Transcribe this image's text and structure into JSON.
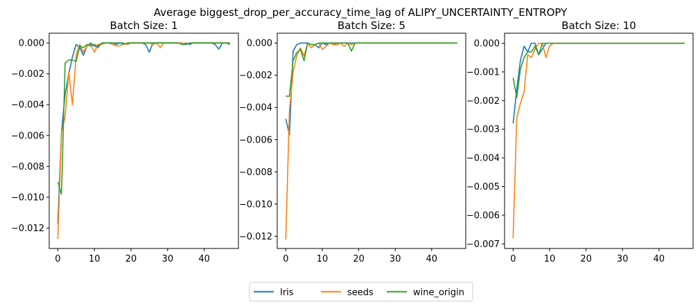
{
  "chart_data": {
    "type": "line",
    "suptitle": "Average biggest_drop_per_accuracy_time_lag of ALIPY_UNCERTAINTY_ENTROPY",
    "legend": {
      "placement": "bottom-center",
      "entries": [
        "Iris",
        "seeds",
        "wine_origin"
      ]
    },
    "colors": {
      "Iris": "#1f77b4",
      "seeds": "#ff7f0e",
      "wine_origin": "#2ca02c"
    },
    "grid": false,
    "subplots": [
      {
        "title": "Batch Size: 1",
        "xlim": [
          -2.35,
          49.35
        ],
        "ylim": [
          -0.01332,
          0.00063
        ],
        "xticks": [
          0,
          10,
          20,
          30,
          40
        ],
        "xtick_labels": [
          "0",
          "10",
          "20",
          "30",
          "40"
        ],
        "yticks": [
          0.0,
          -0.002,
          -0.004,
          -0.006,
          -0.008,
          -0.01,
          -0.012
        ],
        "ytick_labels": [
          "0.000",
          "−0.002",
          "−0.004",
          "−0.006",
          "−0.008",
          "−0.010",
          "−0.012"
        ],
        "x": [
          0,
          1,
          2,
          3,
          4,
          5,
          6,
          7,
          8,
          9,
          10,
          11,
          12,
          13,
          14,
          15,
          16,
          17,
          18,
          19,
          20,
          21,
          22,
          23,
          24,
          25,
          26,
          27,
          28,
          29,
          30,
          31,
          32,
          33,
          34,
          35,
          36,
          37,
          38,
          39,
          40,
          41,
          42,
          43,
          44,
          45,
          46,
          47
        ],
        "series": [
          {
            "name": "Iris",
            "values": [
              -0.0117,
              -0.0058,
              -0.0033,
              -0.002,
              -0.0009,
              -0.0001,
              -0.0003,
              -0.0008,
              -0.0002,
              0,
              -0.0002,
              -0.0003,
              0,
              0,
              0,
              0,
              -0.0001,
              0,
              0,
              -0.0001,
              0,
              0,
              0,
              0,
              -0.0001,
              -0.0006,
              0,
              0,
              0,
              0,
              0,
              0,
              0,
              0,
              -0.0001,
              0,
              -0.0001,
              0,
              0,
              0,
              0,
              0,
              0,
              -0.0001,
              -0.0004,
              0,
              0,
              -0.0001
            ]
          },
          {
            "name": "seeds",
            "values": [
              -0.0127,
              -0.0058,
              -0.0048,
              -0.0019,
              -0.004,
              -0.0008,
              -0.0001,
              -0.0006,
              -0.0002,
              -0.0001,
              -0.0006,
              -0.0001,
              -0.0001,
              0,
              0,
              -0.0001,
              -0.0002,
              -0.0002,
              0,
              -0.0001,
              0,
              0,
              0,
              0,
              0,
              0,
              -0.0001,
              0,
              -0.0003,
              0,
              0,
              0,
              0,
              0,
              0,
              -0.0001,
              0,
              0,
              0,
              0,
              0,
              0,
              0,
              0,
              0,
              0,
              0,
              0
            ]
          },
          {
            "name": "wine_origin",
            "values": [
              -0.009,
              -0.0098,
              -0.0013,
              -0.0011,
              -0.0011,
              -0.0012,
              -0.0002,
              -0.0003,
              -0.0001,
              -0.0002,
              -0.0001,
              -0.0002,
              0,
              0,
              0,
              0,
              0,
              0,
              -0.0001,
              0,
              0,
              0,
              0,
              0,
              0,
              0,
              0,
              0,
              0,
              0,
              0,
              0,
              0,
              0,
              -0.0001,
              -0.0001,
              0,
              0,
              0,
              0,
              0,
              0,
              0,
              0,
              0,
              0,
              0,
              0
            ]
          }
        ]
      },
      {
        "title": "Batch Size: 5",
        "xlim": [
          -2.35,
          49.35
        ],
        "ylim": [
          -0.01276,
          0.00061
        ],
        "xticks": [
          0,
          10,
          20,
          30,
          40
        ],
        "xtick_labels": [
          "0",
          "10",
          "20",
          "30",
          "40"
        ],
        "yticks": [
          0.0,
          -0.002,
          -0.004,
          -0.006,
          -0.008,
          -0.01,
          -0.012
        ],
        "ytick_labels": [
          "0.000",
          "−0.002",
          "−0.004",
          "−0.006",
          "−0.008",
          "−0.010",
          "−0.012"
        ],
        "x": [
          0,
          1,
          2,
          3,
          4,
          5,
          6,
          7,
          8,
          9,
          10,
          11,
          12,
          13,
          14,
          15,
          16,
          17,
          18,
          19,
          20,
          21,
          22,
          23,
          24,
          25,
          26,
          27,
          28,
          29,
          30,
          31,
          32,
          33,
          34,
          35,
          36,
          37,
          38,
          39,
          40,
          41,
          42,
          43,
          44,
          45,
          46,
          47
        ],
        "series": [
          {
            "name": "Iris",
            "values": [
              -0.0047,
              -0.0057,
              -0.0005,
              -0.0001,
              0,
              0,
              0,
              -0.0001,
              -0.0001,
              -0.0003,
              0,
              -0.0001,
              0,
              0,
              -0.0001,
              0,
              0,
              0,
              0,
              0,
              0,
              0,
              0,
              0,
              0,
              0,
              0,
              0,
              0,
              0,
              0,
              0,
              0,
              0,
              0,
              0,
              0,
              0,
              0,
              0,
              0,
              0,
              0,
              0,
              0,
              0,
              0,
              0
            ]
          },
          {
            "name": "seeds",
            "values": [
              -0.0122,
              -0.0042,
              -0.0018,
              -0.0008,
              -0.0003,
              -0.0008,
              0,
              -0.0003,
              -0.0001,
              0,
              -0.0004,
              -0.0002,
              0,
              -0.0001,
              -0.0001,
              0,
              -0.0002,
              0,
              -0.0001,
              0,
              0,
              0,
              0,
              0,
              0,
              0,
              0,
              0,
              0,
              0,
              0,
              0,
              0,
              0,
              0,
              0,
              0,
              0,
              0,
              0,
              0,
              0,
              0,
              0,
              0,
              0,
              0,
              0
            ]
          },
          {
            "name": "wine_origin",
            "values": [
              -0.0033,
              -0.0033,
              -0.0011,
              -0.0006,
              -0.0004,
              -0.0011,
              0,
              -0.0001,
              -0.0001,
              0,
              0,
              0,
              0,
              0,
              0,
              0,
              0,
              0,
              -0.0005,
              0,
              0,
              0,
              0,
              0,
              0,
              0,
              0,
              0,
              0,
              0,
              0,
              0,
              0,
              0,
              0,
              0,
              0,
              0,
              0,
              0,
              0,
              0,
              0,
              0,
              0,
              0,
              0,
              0
            ]
          }
        ]
      },
      {
        "title": "Batch Size: 10",
        "xlim": [
          -2.35,
          49.35
        ],
        "ylim": [
          -0.00716,
          0.00035
        ],
        "xticks": [
          0,
          10,
          20,
          30,
          40
        ],
        "xtick_labels": [
          "0",
          "10",
          "20",
          "30",
          "40"
        ],
        "yticks": [
          0.0,
          -0.001,
          -0.002,
          -0.003,
          -0.004,
          -0.005,
          -0.006,
          -0.007
        ],
        "ytick_labels": [
          "0.000",
          "−0.001",
          "−0.002",
          "−0.003",
          "−0.004",
          "−0.005",
          "−0.006",
          "−0.007"
        ],
        "x": [
          0,
          1,
          2,
          3,
          4,
          5,
          6,
          7,
          8,
          9,
          10,
          11,
          12,
          13,
          14,
          15,
          16,
          17,
          18,
          19,
          20,
          21,
          22,
          23,
          24,
          25,
          26,
          27,
          28,
          29,
          30,
          31,
          32,
          33,
          34,
          35,
          36,
          37,
          38,
          39,
          40,
          41,
          42,
          43,
          44,
          45,
          46,
          47
        ],
        "series": [
          {
            "name": "Iris",
            "values": [
              -0.0028,
              -0.0016,
              -0.0006,
              -0.0001,
              -0.0003,
              0,
              0,
              -0.0004,
              -0.0002,
              0,
              0,
              0,
              0,
              0,
              0,
              0,
              0,
              0,
              0,
              0,
              0,
              0,
              0,
              0,
              0,
              0,
              0,
              0,
              0,
              0,
              0,
              0,
              0,
              0,
              0,
              0,
              0,
              0,
              0,
              0,
              0,
              0,
              0,
              0,
              0,
              0,
              0,
              0
            ]
          },
          {
            "name": "seeds",
            "values": [
              -0.0068,
              -0.0026,
              -0.0021,
              -0.0017,
              -0.0004,
              -0.0005,
              -0.0002,
              0,
              0,
              -0.0005,
              -0.0001,
              0,
              0,
              0,
              0,
              0,
              0,
              0,
              0,
              0,
              0,
              0,
              0,
              0,
              0,
              0,
              0,
              0,
              0,
              0,
              0,
              0,
              0,
              0,
              0,
              0,
              0,
              0,
              0,
              0,
              0,
              0,
              0,
              0,
              0,
              0,
              0,
              0
            ]
          },
          {
            "name": "wine_origin",
            "values": [
              -0.0012,
              -0.0019,
              -0.0009,
              -0.0005,
              -0.0003,
              -0.0003,
              -0.0001,
              -0.0004,
              0,
              0,
              0,
              0,
              0,
              0,
              0,
              0,
              0,
              0,
              0,
              0,
              0,
              0,
              0,
              0,
              0,
              0,
              0,
              0,
              0,
              0,
              0,
              0,
              0,
              0,
              0,
              0,
              0,
              0,
              0,
              0,
              0,
              0,
              0,
              0,
              0,
              0,
              0,
              0
            ]
          }
        ]
      }
    ]
  }
}
